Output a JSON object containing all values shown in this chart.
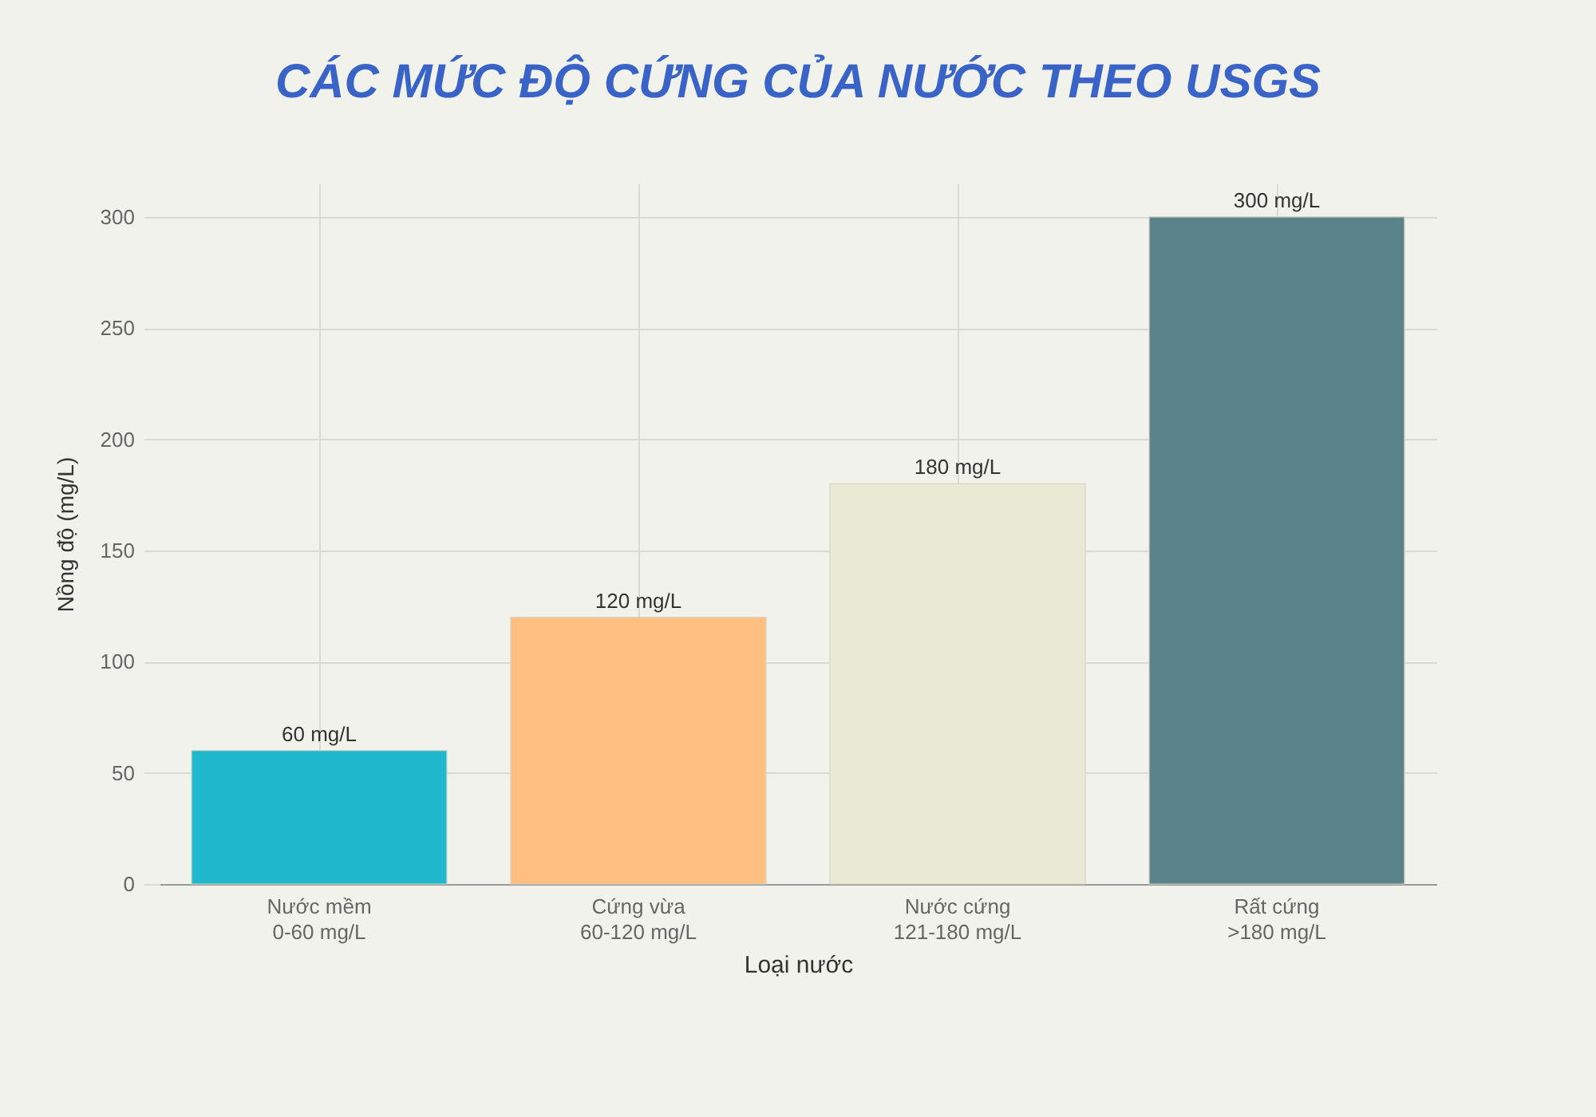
{
  "chart_data": {
    "type": "bar",
    "title": "CÁC MỨC ĐỘ CỨNG CỦA NƯỚC THEO USGS",
    "xlabel": "Loại nước",
    "ylabel": "Nồng độ (mg/L)",
    "categories": [
      "Nước mềm\n0-60 mg/L",
      "Cứng vừa\n60-120 mg/L",
      "Nước cứng\n121-180 mg/L",
      "Rất cứng\n>180 mg/L"
    ],
    "values": [
      60,
      120,
      180,
      300
    ],
    "colors": [
      "#20b8cc",
      "#ffbf80",
      "#eae9d4",
      "#5a838b"
    ],
    "value_labels": [
      "60 mg/L",
      "120 mg/L",
      "180 mg/L",
      "300 mg/L"
    ],
    "ylim": [
      0,
      315
    ],
    "yticks": [
      0,
      50,
      100,
      150,
      200,
      250,
      300
    ],
    "grid": true
  }
}
